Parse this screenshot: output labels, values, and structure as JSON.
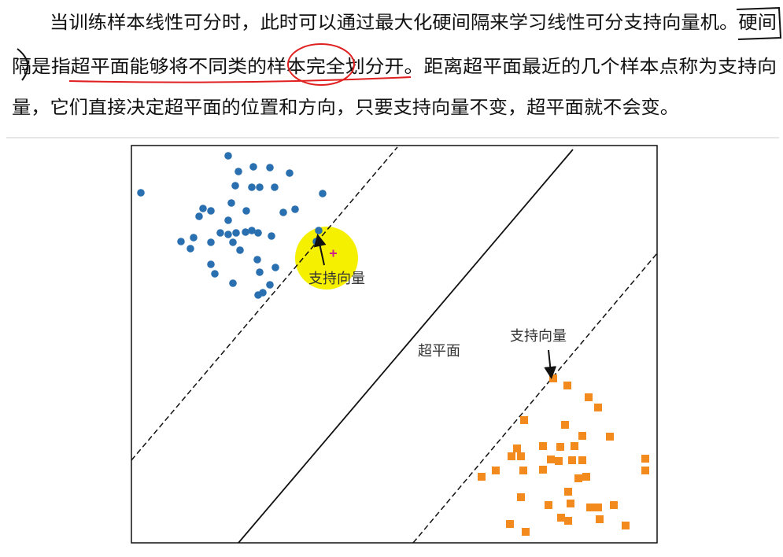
{
  "paragraph": {
    "lines": [
      "当训练样本线性可分时，此时可以通过最大化硬间隔来学习线性可分支持向量机。硬间",
      "隔是指超平面能够将不同类的样本完全划分开。距离超平面最近的几个样本点称为支持向",
      "量，它们直接决定超平面的位置和方向，只要支持向量不变，超平面就不会变。"
    ]
  },
  "figure": {
    "labels": {
      "support_vector_top": "支持向量",
      "hyperplane": "超平面",
      "support_vector_bottom": "支持向量"
    }
  }
}
